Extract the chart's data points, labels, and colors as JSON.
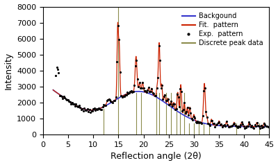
{
  "title": "",
  "xlabel": "Reflection angle (2θ)",
  "ylabel": "Intensity",
  "xlim": [
    0,
    45
  ],
  "ylim": [
    0,
    8000
  ],
  "yticks": [
    0,
    1000,
    2000,
    3000,
    4000,
    5000,
    6000,
    7000,
    8000
  ],
  "xticks": [
    0,
    5,
    10,
    15,
    20,
    25,
    30,
    35,
    40,
    45
  ],
  "background_color": "#ffffff",
  "bg_line_color": "#3333cc",
  "fit_line_color": "#cc2200",
  "exp_dot_color": "#000000",
  "discrete_peak_color": "#8b8b4b",
  "legend_labels": [
    "Backgound",
    "Fit.  pattern",
    "Exp.  pattern",
    "Discrete peak data"
  ],
  "figsize": [
    4.0,
    2.38
  ],
  "dpi": 100
}
